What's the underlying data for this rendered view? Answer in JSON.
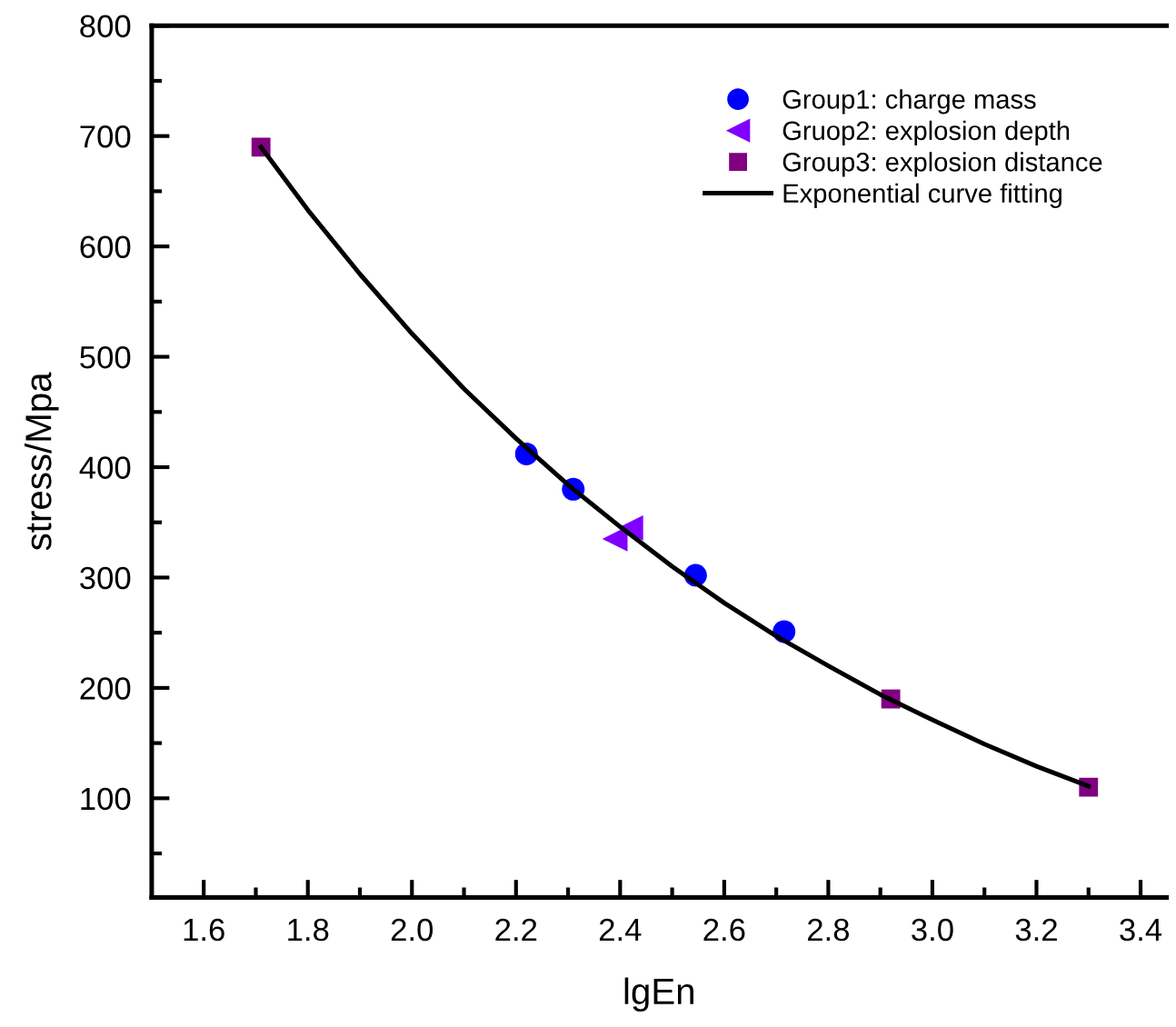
{
  "chart_data": {
    "type": "scatter",
    "xlabel": "lgEn",
    "ylabel": "stress/Mpa",
    "xlim": [
      1.5,
      3.45
    ],
    "ylim": [
      10,
      800
    ],
    "xticks": [
      1.6,
      1.8,
      {
        "value": 2,
        "label": "2.0"
      },
      2.2,
      2.4,
      2.6,
      2.8,
      {
        "value": 3,
        "label": "3.0"
      },
      3.2,
      3.4,
      {
        "value": 1.7,
        "label": null
      },
      {
        "value": 1.9,
        "label": null
      },
      {
        "value": 2.1,
        "label": null
      },
      {
        "value": 2.3,
        "label": null
      },
      {
        "value": 2.5,
        "label": null
      },
      {
        "value": 2.7,
        "label": null
      },
      {
        "value": 2.9,
        "label": null
      },
      {
        "value": 3.1,
        "label": null
      },
      {
        "value": 3.3,
        "label": null
      }
    ],
    "yticks": [
      100,
      200,
      300,
      400,
      500,
      600,
      700,
      800,
      {
        "value": 50,
        "label": null
      },
      {
        "value": 150,
        "label": null
      },
      {
        "value": 250,
        "label": null
      },
      {
        "value": 350,
        "label": null
      },
      {
        "value": 450,
        "label": null
      },
      {
        "value": 550,
        "label": null
      },
      {
        "value": 650,
        "label": null
      },
      {
        "value": 750,
        "label": null
      }
    ],
    "grid": false,
    "legend": "top right",
    "series": [
      {
        "name": "Group1: charge mass",
        "marker": "circle",
        "color": "#0000ff",
        "x": [
          2.22,
          2.31,
          2.545,
          2.715
        ],
        "values": [
          412,
          380,
          302,
          251
        ]
      },
      {
        "name": "Gruop2: explosion depth",
        "marker": "triangle",
        "color": "#8000ff",
        "x": [
          2.39,
          2.42
        ],
        "values": [
          335,
          345
        ]
      },
      {
        "name": "Group3: explosion distance",
        "marker": "square",
        "color": "#800080",
        "x": [
          1.71,
          2.92,
          3.3
        ],
        "values": [
          690,
          190,
          110
        ]
      },
      {
        "name": "Exponential curve fitting",
        "type": "line",
        "marker": "none",
        "line_style": "solid",
        "color": "#000000",
        "x": [
          1.71,
          1.8,
          1.9,
          2.0,
          2.1,
          2.2,
          2.3,
          2.4,
          2.5,
          2.6,
          2.7,
          2.8,
          2.9,
          3.0,
          3.1,
          3.2,
          3.3
        ],
        "values": [
          690,
          633,
          575,
          521,
          471,
          426,
          384,
          346,
          310,
          277,
          247,
          220,
          194,
          171,
          149,
          129,
          111
        ]
      }
    ]
  }
}
